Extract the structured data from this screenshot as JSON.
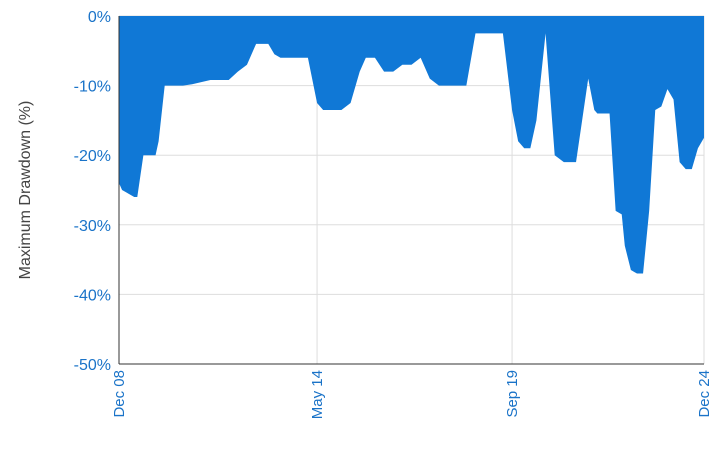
{
  "chart_data": {
    "type": "area",
    "ylabel": "Maximum Drawdown (%)",
    "xlabel": "",
    "title": "",
    "ylim": [
      -50,
      0
    ],
    "y_ticks": [
      0,
      -10,
      -20,
      -30,
      -40,
      -50
    ],
    "y_tick_labels": [
      "0%",
      "-10%",
      "-20%",
      "-30%",
      "-40%",
      "-50%"
    ],
    "x_range": [
      "2008-12",
      "2024-12"
    ],
    "x_tick_labels": [
      {
        "date": "2008-12",
        "label": "Dec 08"
      },
      {
        "date": "2014-05",
        "label": "May 14"
      },
      {
        "date": "2019-09",
        "label": "Sep 19"
      },
      {
        "date": "2024-12",
        "label": "Dec 24"
      }
    ],
    "grid": true,
    "fill_color": "#1078d6",
    "series": [
      {
        "x": [
          "2008-12",
          "2009-01",
          "2009-03",
          "2009-05",
          "2009-06",
          "2009-08",
          "2009-10",
          "2009-12",
          "2010-01",
          "2010-03",
          "2010-06",
          "2010-09",
          "2010-12",
          "2011-03",
          "2011-06",
          "2011-09",
          "2011-12",
          "2012-03",
          "2012-06",
          "2012-09",
          "2012-11",
          "2013-01",
          "2013-03",
          "2013-05",
          "2013-08",
          "2013-11",
          "2014-02",
          "2014-05",
          "2014-07",
          "2014-10",
          "2015-01",
          "2015-04",
          "2015-07",
          "2015-09",
          "2015-12",
          "2016-03",
          "2016-06",
          "2016-09",
          "2016-12",
          "2017-03",
          "2017-06",
          "2017-09",
          "2017-12",
          "2018-03",
          "2018-06",
          "2018-09",
          "2018-12",
          "2019-03",
          "2019-06",
          "2019-09",
          "2019-11",
          "2020-01",
          "2020-02",
          "2020-03",
          "2020-05",
          "2020-08",
          "2020-11",
          "2021-02",
          "2021-05",
          "2021-06",
          "2021-08",
          "2021-10",
          "2021-12",
          "2022-01",
          "2022-03",
          "2022-05",
          "2022-07",
          "2022-09",
          "2022-10",
          "2022-12",
          "2023-02",
          "2023-04",
          "2023-06",
          "2023-08",
          "2023-10",
          "2023-12",
          "2024-02",
          "2024-04",
          "2024-06",
          "2024-08",
          "2024-10",
          "2024-12"
        ],
        "values": [
          -24,
          -25,
          -25.5,
          -26,
          -26,
          -20,
          -20,
          -20,
          -18,
          -10,
          -10,
          -10,
          -9.8,
          -9.5,
          -9.2,
          -9.2,
          -9.2,
          -8,
          -7,
          -4,
          -4,
          -4,
          -5.5,
          -6,
          -6,
          -6,
          -6,
          -12.5,
          -13.5,
          -13.5,
          -13.5,
          -12.5,
          -8,
          -6,
          -6,
          -8,
          -8,
          -7,
          -7,
          -6,
          -9,
          -10,
          -10,
          -10,
          -10,
          -2.5,
          -2.5,
          -2.5,
          -2.5,
          -13.5,
          -18,
          -19,
          -19,
          -19,
          -15,
          -2.5,
          -20,
          -21,
          -21,
          -21,
          -15,
          -9,
          -13.5,
          -14,
          -14,
          -14,
          -28,
          -28.5,
          -33,
          -36.5,
          -37,
          -37,
          -28,
          -13.5,
          -13,
          -10.5,
          -12,
          -21,
          -22,
          -22,
          -19,
          -17.5
        ]
      }
    ]
  }
}
